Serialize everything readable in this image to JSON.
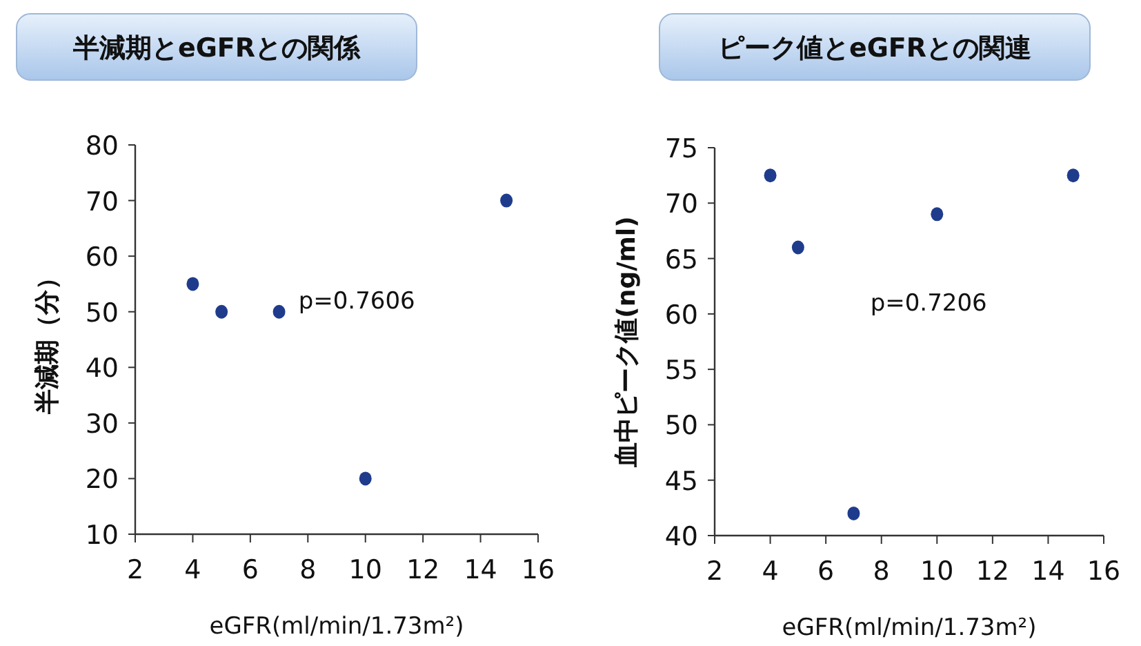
{
  "chart_data": [
    {
      "type": "scatter",
      "title": "半減期とeGFRとの関係",
      "xlabel": "eGFR(ml/min/1.73m²)",
      "ylabel": "半減期（分）",
      "x": [
        4,
        5,
        7,
        10,
        14.9
      ],
      "values": [
        55,
        50,
        50,
        20,
        70
      ],
      "color": "#1f3c8c",
      "marker": "circle",
      "xlim": [
        2,
        16
      ],
      "xticks": [
        2,
        4,
        6,
        8,
        10,
        12,
        14,
        16
      ],
      "ylim": [
        10,
        80
      ],
      "yticks": [
        10,
        20,
        30,
        40,
        50,
        60,
        70,
        80
      ],
      "grid": false,
      "annotations": [
        "p=0.7606"
      ]
    },
    {
      "type": "scatter",
      "title": "ピーク値とeGFRとの関連",
      "xlabel": "eGFR(ml/min/1.73m²)",
      "ylabel": "血中ピーク値(ng/ml)",
      "x": [
        4,
        5,
        7,
        10,
        14.9
      ],
      "values": [
        72.5,
        66,
        42,
        69,
        72.5
      ],
      "color": "#1f3c8c",
      "marker": "circle",
      "xlim": [
        2,
        16
      ],
      "xticks": [
        2,
        4,
        6,
        8,
        10,
        12,
        14,
        16
      ],
      "ylim": [
        40,
        75
      ],
      "yticks": [
        40,
        45,
        50,
        55,
        60,
        65,
        70,
        75
      ],
      "grid": false,
      "annotations": [
        "p=0.7206"
      ]
    }
  ]
}
